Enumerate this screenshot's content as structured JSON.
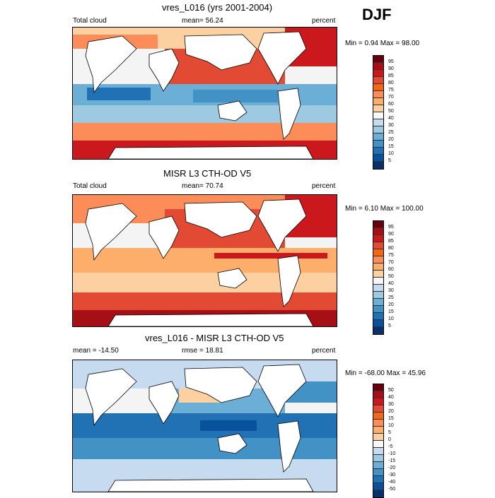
{
  "season": "DJF",
  "panels": [
    {
      "title": "vres_L016 (yrs 2001-2004)",
      "left_label": "Total cloud",
      "center_label": "mean=  56.24",
      "right_label": "percent",
      "minmax": "Min =   0.94 Max =  98.00",
      "colorbar": {
        "ticks": [
          "95",
          "90",
          "85",
          "80",
          "75",
          "70",
          "60",
          "50",
          "40",
          "30",
          "25",
          "20",
          "15",
          "10",
          "5"
        ],
        "colors": [
          "#67000d",
          "#a50f15",
          "#cb181d",
          "#e34a33",
          "#f16913",
          "#fc8d59",
          "#fdae6b",
          "#fdd0a2",
          "#f7f7f7",
          "#c6dbef",
          "#9ecae1",
          "#6baed6",
          "#4292c6",
          "#2171b5",
          "#08519c",
          "#08306b"
        ]
      }
    },
    {
      "title": "MISR L3 CTH-OD V5",
      "left_label": "Total cloud",
      "center_label": "mean=  70.74",
      "right_label": "percent",
      "minmax": "Min =   6.10 Max = 100.00",
      "colorbar": {
        "ticks": [
          "95",
          "90",
          "85",
          "80",
          "75",
          "70",
          "60",
          "50",
          "40",
          "30",
          "25",
          "20",
          "15",
          "10",
          "5"
        ],
        "colors": [
          "#67000d",
          "#a50f15",
          "#cb181d",
          "#e34a33",
          "#f16913",
          "#fc8d59",
          "#fdae6b",
          "#fdd0a2",
          "#f7f7f7",
          "#c6dbef",
          "#9ecae1",
          "#6baed6",
          "#4292c6",
          "#2171b5",
          "#08519c",
          "#08306b"
        ]
      }
    },
    {
      "title": "vres_L016 - MISR L3 CTH-OD V5",
      "left_label": "mean = -14.50",
      "center_label": "rmse =  18.81",
      "right_label": "percent",
      "minmax": "Min = -68.00 Max =  45.96",
      "colorbar": {
        "ticks": [
          "50",
          "40",
          "30",
          "20",
          "15",
          "10",
          "5",
          "0",
          "-5",
          "-10",
          "-15",
          "-20",
          "-30",
          "-40",
          "-50"
        ],
        "colors": [
          "#67000d",
          "#a50f15",
          "#cb181d",
          "#e34a33",
          "#f16913",
          "#fc8d59",
          "#fdae6b",
          "#fdd0a2",
          "#f7f7f7",
          "#c6dbef",
          "#9ecae1",
          "#6baed6",
          "#4292c6",
          "#2171b5",
          "#08519c",
          "#08306b"
        ]
      }
    }
  ]
}
